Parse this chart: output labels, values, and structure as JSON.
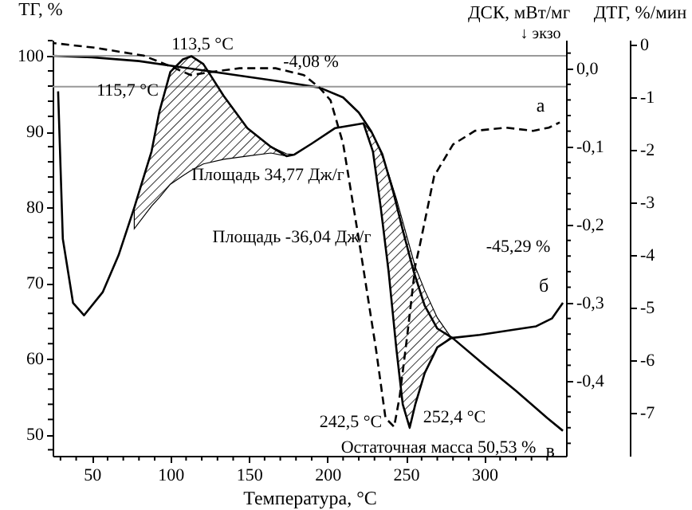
{
  "chart_data": {
    "type": "line",
    "xlabel": "Температура, °C",
    "ylabel": "ТГ, %",
    "y2label": "ДСК, мВт/мг",
    "y3label": "ДТГ, %/мин",
    "xlim": [
      25,
      352
    ],
    "xticks": [
      {
        "value": 30,
        "label": null
      },
      {
        "value": 40,
        "label": null
      },
      50,
      {
        "value": 60,
        "label": null
      },
      {
        "value": 70,
        "label": null
      },
      {
        "value": 80,
        "label": null
      },
      {
        "value": 90,
        "label": null
      },
      100,
      {
        "value": 110,
        "label": null
      },
      {
        "value": 120,
        "label": null
      },
      {
        "value": 130,
        "label": null
      },
      {
        "value": 140,
        "label": null
      },
      150,
      {
        "value": 160,
        "label": null
      },
      {
        "value": 170,
        "label": null
      },
      {
        "value": 180,
        "label": null
      },
      {
        "value": 190,
        "label": null
      },
      200,
      {
        "value": 210,
        "label": null
      },
      {
        "value": 220,
        "label": null
      },
      {
        "value": 230,
        "label": null
      },
      {
        "value": 240,
        "label": null
      },
      250,
      {
        "value": 260,
        "label": null
      },
      {
        "value": 270,
        "label": null
      },
      {
        "value": 280,
        "label": null
      },
      {
        "value": 290,
        "label": null
      },
      300,
      {
        "value": 310,
        "label": null
      },
      {
        "value": 320,
        "label": null
      },
      {
        "value": 330,
        "label": null
      },
      {
        "value": 340,
        "label": null
      }
    ],
    "ylim": [
      47.2,
      102.1
    ],
    "yticks": [
      {
        "value": 48,
        "label": null
      },
      50,
      {
        "value": 52,
        "label": null
      },
      {
        "value": 54,
        "label": null
      },
      {
        "value": 56,
        "label": null
      },
      {
        "value": 58,
        "label": null
      },
      60,
      {
        "value": 62,
        "label": null
      },
      {
        "value": 64,
        "label": null
      },
      {
        "value": 66,
        "label": null
      },
      {
        "value": 68,
        "label": null
      },
      70,
      {
        "value": 72,
        "label": null
      },
      {
        "value": 74,
        "label": null
      },
      {
        "value": 76,
        "label": null
      },
      {
        "value": 78,
        "label": null
      },
      80,
      {
        "value": 82,
        "label": null
      },
      {
        "value": 84,
        "label": null
      },
      {
        "value": 86,
        "label": null
      },
      {
        "value": 88,
        "label": null
      },
      90,
      {
        "value": 92,
        "label": null
      },
      {
        "value": 94,
        "label": null
      },
      {
        "value": 96,
        "label": null
      },
      {
        "value": 98,
        "label": null
      },
      100,
      {
        "value": 102,
        "label": null
      }
    ],
    "y2lim": [
      -0.496,
      0.037
    ],
    "y2ticks": [
      {
        "value": 0.02,
        "label": null
      },
      {
        "value": 0,
        "label": "0,0"
      },
      {
        "value": -0.02,
        "label": null
      },
      {
        "value": -0.04,
        "label": null
      },
      {
        "value": -0.06,
        "label": null
      },
      {
        "value": -0.08,
        "label": null
      },
      {
        "value": -0.1,
        "label": "-0,1"
      },
      {
        "value": -0.12,
        "label": null
      },
      {
        "value": -0.14,
        "label": null
      },
      {
        "value": -0.16,
        "label": null
      },
      {
        "value": -0.18,
        "label": null
      },
      {
        "value": -0.2,
        "label": "-0,2"
      },
      {
        "value": -0.22,
        "label": null
      },
      {
        "value": -0.24,
        "label": null
      },
      {
        "value": -0.26,
        "label": null
      },
      {
        "value": -0.28,
        "label": null
      },
      {
        "value": -0.3,
        "label": "-0,3"
      },
      {
        "value": -0.32,
        "label": null
      },
      {
        "value": -0.34,
        "label": null
      },
      {
        "value": -0.36,
        "label": null
      },
      {
        "value": -0.38,
        "label": null
      },
      {
        "value": -0.4,
        "label": "-0,4"
      },
      {
        "value": -0.42,
        "label": null
      },
      {
        "value": -0.44,
        "label": null
      },
      {
        "value": -0.46,
        "label": null
      },
      {
        "value": -0.48,
        "label": null
      }
    ],
    "y3lim": [
      -7.82,
      0.09
    ],
    "y3ticks": [
      0,
      -1,
      -2,
      -3,
      -4,
      -5,
      -6,
      -7
    ],
    "grid": false,
    "ref_lines": [
      {
        "axis": "y",
        "value": 100,
        "color": "#999999"
      },
      {
        "axis": "y",
        "value": 95.92,
        "color": "#999999"
      }
    ],
    "annotations": [
      "113,5 °C",
      "115,7 °C",
      "-4,08 %",
      "Площадь 34,77 Дж/г",
      "Площадь -36,04 Дж/г",
      "-45,29 %",
      "242,5 °C",
      "252,4 °C",
      "Остаточная масса 50,53 %",
      "↓ экзо"
    ],
    "series": [
      {
        "name": "в",
        "color": "#000000",
        "line_style": "solid",
        "x": [
          25,
          50,
          80,
          110,
          140,
          170,
          195,
          210,
          220,
          228,
          235,
          242,
          248,
          255,
          262,
          270,
          280,
          300,
          320,
          340,
          350
        ],
        "values": [
          100,
          99.8,
          99.3,
          98.4,
          97.5,
          96.6,
          95.8,
          94.5,
          92.5,
          90,
          87,
          82,
          77,
          71.5,
          67,
          64,
          62.7,
          59.2,
          55.8,
          52.2,
          50.5
        ]
      },
      {
        "name": "б",
        "color": "#000000",
        "line_style": "solid",
        "axis": "y2",
        "x": [
          28.5,
          31.5,
          38,
          45,
          57,
          67,
          77,
          88,
          93,
          100,
          108,
          113.5,
          121,
          134,
          149,
          164,
          174,
          179,
          190,
          205,
          223,
          229,
          234,
          239,
          244,
          248,
          252.4,
          256,
          262,
          270,
          279,
          297,
          317,
          333,
          343,
          350
        ],
        "values": [
          -0.029,
          -0.218,
          -0.3,
          -0.316,
          -0.286,
          -0.239,
          -0.178,
          -0.106,
          -0.055,
          -0.004,
          0.012,
          0.016,
          0.006,
          -0.035,
          -0.076,
          -0.1,
          -0.112,
          -0.11,
          -0.096,
          -0.076,
          -0.07,
          -0.106,
          -0.178,
          -0.26,
          -0.36,
          -0.43,
          -0.46,
          -0.43,
          -0.39,
          -0.357,
          -0.345,
          -0.341,
          -0.335,
          -0.33,
          -0.32,
          -0.3
        ],
        "lower": [
          null,
          null,
          null,
          null,
          null,
          null,
          -0.205,
          -0.176,
          -0.165,
          -0.148,
          -0.137,
          -0.13,
          -0.122,
          -0.116,
          -0.112,
          -0.108,
          -0.112,
          -0.11,
          null,
          null,
          -0.07,
          -0.106,
          -0.178,
          -0.26,
          -0.36,
          -0.43,
          -0.46,
          -0.43,
          -0.39,
          -0.357,
          -0.345,
          null,
          null,
          null,
          null,
          null
        ],
        "upper": [
          null,
          null,
          null,
          null,
          null,
          null,
          -0.178,
          -0.106,
          -0.055,
          -0.004,
          0.012,
          0.016,
          0.006,
          -0.035,
          -0.076,
          -0.1,
          -0.109,
          -0.11,
          null,
          null,
          -0.07,
          -0.084,
          -0.107,
          -0.135,
          -0.167,
          -0.196,
          -0.228,
          -0.254,
          -0.284,
          -0.319,
          -0.345,
          null,
          null,
          null,
          null,
          null
        ]
      },
      {
        "name": "а",
        "color": "#000000",
        "line_style": "dashed",
        "axis": "y3",
        "x": [
          25,
          52,
          83,
          103,
          113,
          126.5,
          144,
          167,
          185,
          195,
          202,
          210,
          220,
          231,
          237,
          242.5,
          246,
          251,
          256,
          259,
          268,
          280,
          294,
          314,
          331,
          341,
          348
        ],
        "values": [
          0.03,
          -0.06,
          -0.21,
          -0.45,
          -0.58,
          -0.52,
          -0.45,
          -0.45,
          -0.58,
          -0.82,
          -1.06,
          -1.88,
          -3.7,
          -5.8,
          -7.1,
          -7.27,
          -6.7,
          -5.5,
          -4.2,
          -3.8,
          -2.5,
          -1.9,
          -1.64,
          -1.58,
          -1.64,
          -1.58,
          -1.48
        ]
      }
    ]
  }
}
